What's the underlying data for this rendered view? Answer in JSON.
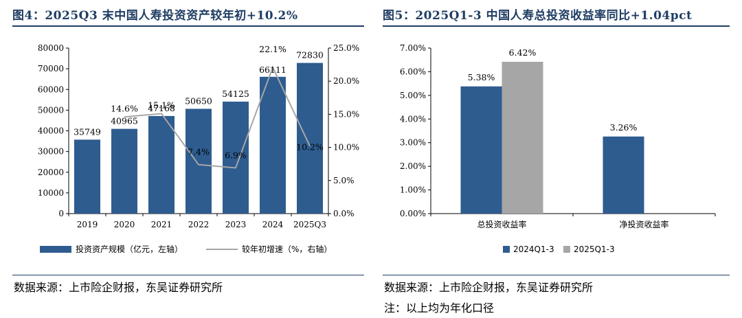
{
  "left": {
    "title": "图4：2025Q3 末中国人寿投资资产较年初+10.2%",
    "source": "数据来源：上市险企财报，东吴证券研究所",
    "chart_data": {
      "type": "bar+line",
      "categories": [
        "2019",
        "2020",
        "2021",
        "2022",
        "2023",
        "2024",
        "2025Q3"
      ],
      "series": [
        {
          "name": "投资资产规模（亿元，左轴）",
          "type": "bar",
          "axis": "left",
          "values": [
            35749,
            40965,
            47168,
            50650,
            54125,
            66111,
            72830
          ],
          "labels": [
            "35749",
            "40965",
            "47168",
            "50650",
            "54125",
            "66111",
            "72830"
          ]
        },
        {
          "name": "较年初增速（%，右轴）",
          "type": "line",
          "axis": "right",
          "values": [
            null,
            14.6,
            15.1,
            7.4,
            6.9,
            22.1,
            10.2
          ],
          "labels": [
            "",
            "14.6%",
            "15.1%",
            "7.4%",
            "6.9%",
            "22.1%",
            "10.2%"
          ]
        }
      ],
      "y_left": {
        "min": 0,
        "max": 80000,
        "step": 10000,
        "ticks": [
          "0",
          "10000",
          "20000",
          "30000",
          "40000",
          "50000",
          "60000",
          "70000",
          "80000"
        ]
      },
      "y_right": {
        "min": 0,
        "max": 25,
        "step": 5,
        "ticks": [
          "0.0%",
          "5.0%",
          "10.0%",
          "15.0%",
          "20.0%",
          "25.0%"
        ]
      },
      "grid": false,
      "legend_position": "bottom",
      "colors": {
        "bar": "#2e5c8f",
        "line": "#a6a6a6"
      }
    }
  },
  "right": {
    "title": "图5：2025Q1-3 中国人寿总投资收益率同比+1.04pct",
    "source": "数据来源：上市险企财报，东吴证券研究所",
    "note": "注：以上均为年化口径",
    "chart_data": {
      "type": "bar",
      "categories": [
        "总投资收益率",
        "净投资收益率"
      ],
      "series": [
        {
          "name": "2024Q1-3",
          "values": [
            5.38,
            3.26
          ],
          "labels": [
            "5.38%",
            "3.26%"
          ]
        },
        {
          "name": "2025Q1-3",
          "values": [
            6.42,
            null
          ],
          "labels": [
            "6.42%",
            ""
          ]
        }
      ],
      "y": {
        "min": 0,
        "max": 7,
        "step": 1,
        "ticks": [
          "0.00%",
          "1.00%",
          "2.00%",
          "3.00%",
          "4.00%",
          "5.00%",
          "6.00%",
          "7.00%"
        ]
      },
      "grid": false,
      "legend_position": "bottom",
      "colors": {
        "2024Q1-3": "#2e5c8f",
        "2025Q1-3": "#a6a6a6"
      }
    }
  }
}
